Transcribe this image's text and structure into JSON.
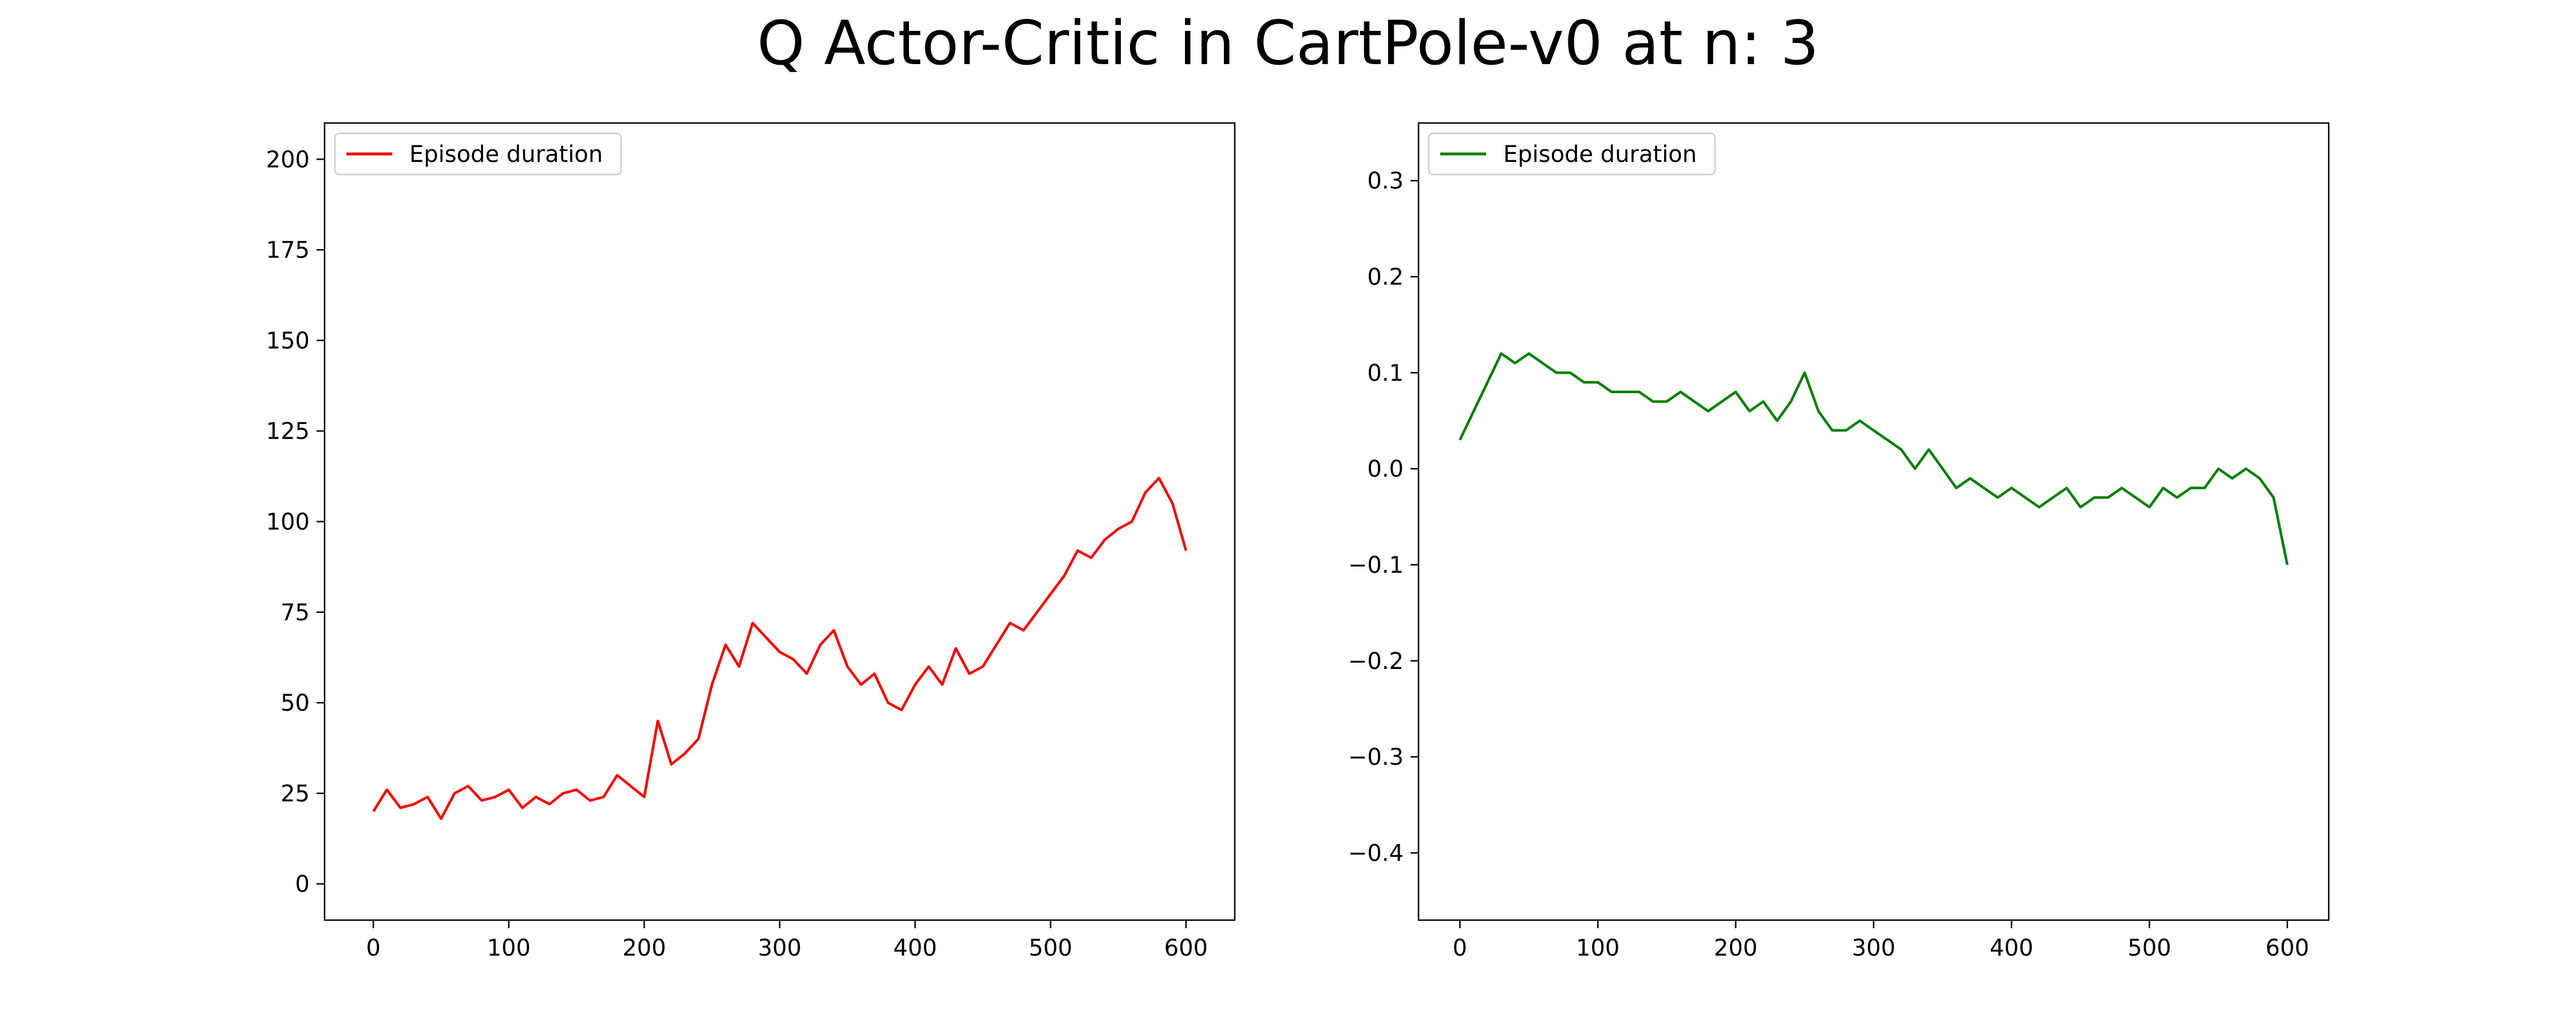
{
  "figure": {
    "title": "Q Actor-Critic in CartPole-v0 at n: 3"
  },
  "chart_data": [
    {
      "type": "line",
      "xlim": [
        -36,
        636
      ],
      "ylim": [
        -10,
        210
      ],
      "xticks": [
        0,
        100,
        200,
        300,
        400,
        500,
        600
      ],
      "yticks": [
        0,
        25,
        50,
        75,
        100,
        125,
        150,
        175,
        200
      ],
      "grid": false,
      "legend_position": "top-left",
      "series": [
        {
          "name": "Episode duration",
          "color": "#ff0000",
          "x": [
            0,
            10,
            20,
            30,
            40,
            50,
            60,
            70,
            80,
            90,
            100,
            110,
            120,
            130,
            140,
            150,
            160,
            170,
            180,
            190,
            200,
            210,
            220,
            230,
            240,
            250,
            260,
            270,
            280,
            290,
            300,
            310,
            320,
            330,
            340,
            350,
            360,
            370,
            380,
            390,
            400,
            410,
            420,
            430,
            440,
            450,
            460,
            470,
            480,
            490,
            500,
            510,
            520,
            530,
            540,
            550,
            560,
            570,
            580,
            590,
            600
          ],
          "values": [
            20,
            26,
            21,
            22,
            24,
            18,
            25,
            27,
            23,
            24,
            26,
            21,
            24,
            22,
            25,
            26,
            23,
            24,
            30,
            27,
            24,
            45,
            33,
            36,
            40,
            55,
            66,
            60,
            72,
            68,
            64,
            62,
            58,
            66,
            70,
            60,
            55,
            58,
            50,
            48,
            55,
            60,
            55,
            65,
            58,
            60,
            66,
            72,
            70,
            75,
            80,
            85,
            92,
            90,
            95,
            98,
            100,
            108,
            112,
            105,
            92
          ]
        }
      ]
    },
    {
      "type": "line",
      "xlim": [
        -30,
        630
      ],
      "ylim": [
        -0.47,
        0.36
      ],
      "xticks": [
        0,
        100,
        200,
        300,
        400,
        500,
        600
      ],
      "yticks": [
        -0.4,
        -0.3,
        -0.2,
        -0.1,
        0.0,
        0.1,
        0.2,
        0.3
      ],
      "ytick_labels": [
        "−0.4",
        "−0.3",
        "−0.2",
        "−0.1",
        "0.0",
        "0.1",
        "0.2",
        "0.3"
      ],
      "grid": false,
      "legend_position": "top-left",
      "series": [
        {
          "name": "Episode duration",
          "color": "#008000",
          "x": [
            0,
            10,
            20,
            30,
            40,
            50,
            60,
            70,
            80,
            90,
            100,
            110,
            120,
            130,
            140,
            150,
            160,
            170,
            180,
            190,
            200,
            210,
            220,
            230,
            240,
            250,
            260,
            270,
            280,
            290,
            300,
            310,
            320,
            330,
            340,
            350,
            360,
            370,
            380,
            390,
            400,
            410,
            420,
            430,
            440,
            450,
            460,
            470,
            480,
            490,
            500,
            510,
            520,
            530,
            540,
            550,
            560,
            570,
            580,
            590,
            600
          ],
          "values": [
            0.03,
            0.06,
            0.09,
            0.12,
            0.11,
            0.12,
            0.11,
            0.1,
            0.1,
            0.09,
            0.09,
            0.08,
            0.08,
            0.08,
            0.07,
            0.07,
            0.08,
            0.07,
            0.06,
            0.07,
            0.08,
            0.06,
            0.07,
            0.05,
            0.07,
            0.1,
            0.06,
            0.04,
            0.04,
            0.05,
            0.04,
            0.03,
            0.02,
            0.0,
            0.02,
            0.0,
            -0.02,
            -0.01,
            -0.02,
            -0.03,
            -0.02,
            -0.03,
            -0.04,
            -0.03,
            -0.02,
            -0.04,
            -0.03,
            -0.03,
            -0.02,
            -0.03,
            -0.04,
            -0.02,
            -0.03,
            -0.02,
            -0.02,
            0.0,
            -0.01,
            0.0,
            -0.01,
            -0.03,
            -0.1
          ]
        }
      ]
    }
  ]
}
